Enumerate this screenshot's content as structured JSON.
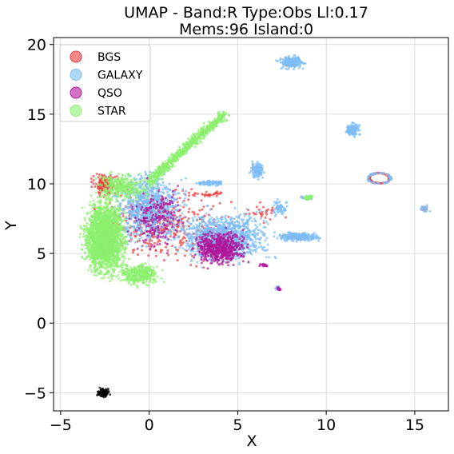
{
  "chart_data": {
    "type": "scatter",
    "title_line1": "UMAP  -  Band:R Type:Obs Ll:0.17",
    "title_line2": "Mems:96 Island:0",
    "xlabel": "X",
    "ylabel": "Y",
    "xlim": [
      -5.4,
      16.9
    ],
    "ylim": [
      -6.3,
      20.5
    ],
    "xticks": [
      -5,
      0,
      5,
      10,
      15
    ],
    "yticks": [
      -5,
      0,
      5,
      10,
      15,
      20
    ],
    "grid": true,
    "legend_position": "top-left",
    "series": [
      {
        "name": "BGS",
        "color": "#f03c3c",
        "clusters": [
          {
            "x": [
              -3.5,
              -1.5
            ],
            "y": [
              9.0,
              10.9
            ],
            "n": 160
          },
          {
            "x": [
              -4.0,
              5.5
            ],
            "y": [
              3.5,
              10.5
            ],
            "n": 380
          },
          {
            "x": [
              12.4,
              13.6
            ],
            "y": [
              10.0,
              10.8
            ],
            "ring": true,
            "n": 60
          },
          {
            "x": [
              2.0,
              4.5
            ],
            "y": [
              9.0,
              9.5
            ],
            "n": 30
          },
          {
            "x": [
              15.3,
              15.8
            ],
            "y": [
              8.0,
              8.4
            ],
            "n": 10
          },
          {
            "x": [
              5.0,
              8.0
            ],
            "y": [
              7.0,
              8.8
            ],
            "n": 30
          }
        ]
      },
      {
        "name": "GALAXY",
        "color": "#7dbcf5",
        "clusters": [
          {
            "x": [
              -2.5,
              2.5
            ],
            "y": [
              5.0,
              11.5
            ],
            "n": 900
          },
          {
            "x": [
              1.0,
              7.5
            ],
            "y": [
              3.8,
              8.5
            ],
            "n": 1100
          },
          {
            "x": [
              7.0,
              10.0
            ],
            "y": [
              5.8,
              6.6
            ],
            "n": 260
          },
          {
            "x": [
              7.1,
              9.0
            ],
            "y": [
              18.1,
              19.3
            ],
            "n": 200
          },
          {
            "x": [
              10.9,
              12.0
            ],
            "y": [
              13.3,
              14.5
            ],
            "n": 150
          },
          {
            "x": [
              5.6,
              6.6
            ],
            "y": [
              10.2,
              11.8
            ],
            "n": 110
          },
          {
            "x": [
              2.4,
              4.6
            ],
            "y": [
              9.8,
              10.3
            ],
            "n": 90
          },
          {
            "x": [
              12.3,
              13.7
            ],
            "y": [
              10.0,
              10.8
            ],
            "ring": true,
            "n": 70
          },
          {
            "x": [
              6.8,
              8.0
            ],
            "y": [
              7.5,
              9.0
            ],
            "n": 60
          },
          {
            "x": [
              15.2,
              15.9
            ],
            "y": [
              7.9,
              8.5
            ],
            "n": 25
          },
          {
            "x": [
              7.0,
              7.5
            ],
            "y": [
              2.3,
              2.7
            ],
            "n": 18
          },
          {
            "x": [
              8.4,
              9.3
            ],
            "y": [
              8.8,
              9.2
            ],
            "n": 30
          }
        ]
      },
      {
        "name": "QSO",
        "color": "#b0169a",
        "clusters": [
          {
            "x": [
              2.2,
              5.8
            ],
            "y": [
              3.8,
              7.0
            ],
            "n": 560
          },
          {
            "x": [
              -1.5,
              2.5
            ],
            "y": [
              4.5,
              10.5
            ],
            "n": 200
          },
          {
            "x": [
              6.2,
              6.8
            ],
            "y": [
              4.0,
              4.3
            ],
            "n": 20
          },
          {
            "x": [
              7.2,
              7.5
            ],
            "y": [
              2.3,
              2.6
            ],
            "n": 10
          }
        ]
      },
      {
        "name": "STAR",
        "color": "#8cf06e",
        "clusters": [
          {
            "x": [
              -4.0,
              -1.0
            ],
            "y": [
              2.8,
              9.5
            ],
            "n": 2200
          },
          {
            "x": [
              -2.0,
              1.0
            ],
            "y": [
              2.5,
              4.5
            ],
            "n": 350
          },
          {
            "x": [
              -3.5,
              0.5
            ],
            "y": [
              8.5,
              11.0
            ],
            "n": 300
          },
          {
            "x": [
              0.0,
              4.3
            ],
            "y": [
              10.0,
              15.0
            ],
            "band": true,
            "n": 650
          },
          {
            "x": [
              8.5,
              9.5
            ],
            "y": [
              8.8,
              9.2
            ],
            "n": 35
          }
        ]
      },
      {
        "name": "",
        "color": "#000000",
        "clusters": [
          {
            "x": [
              -3.0,
              -2.1
            ],
            "y": [
              -5.4,
              -4.6
            ],
            "n": 120
          }
        ]
      }
    ]
  }
}
